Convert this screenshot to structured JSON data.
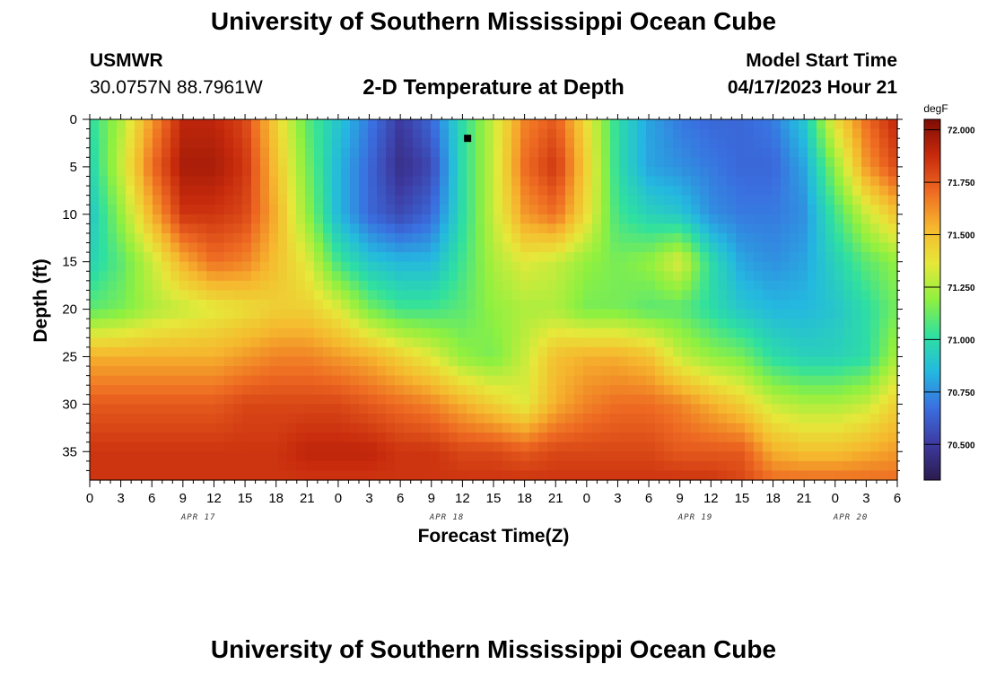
{
  "header": {
    "title": "University of Southern Mississippi Ocean Cube",
    "station_id": "USMWR",
    "coords": "30.0757N  88.7961W",
    "subtitle": "2-D Temperature at Depth",
    "model_start_label": "Model Start Time",
    "model_start_value": "04/17/2023 Hour 21"
  },
  "footer": {
    "title": "University of Southern Mississippi Ocean Cube"
  },
  "chart_data": {
    "type": "heatmap",
    "title": "2-D Temperature at Depth",
    "xlabel": "Forecast Time(Z)",
    "ylabel": "Depth (ft)",
    "x_tick_labels": [
      "0",
      "3",
      "6",
      "9",
      "12",
      "15",
      "18",
      "21",
      "0",
      "3",
      "6",
      "9",
      "12",
      "15",
      "18",
      "21",
      "0",
      "3",
      "6",
      "9",
      "12",
      "15",
      "18",
      "21",
      "0",
      "3",
      "6"
    ],
    "x_date_labels": [
      {
        "label": "APR 17",
        "hour_index": 3.5
      },
      {
        "label": "APR 18",
        "hour_index": 11.5
      },
      {
        "label": "APR 19",
        "hour_index": 19.5
      },
      {
        "label": "APR 20",
        "hour_index": 24.5
      }
    ],
    "xlim_hours_from_apr17_00z": [
      0,
      78
    ],
    "y_tick_labels": [
      "0",
      "5",
      "10",
      "15",
      "20",
      "25",
      "30",
      "35"
    ],
    "y_ticks": [
      0,
      5,
      10,
      15,
      20,
      25,
      30,
      35
    ],
    "ylim": [
      38,
      0
    ],
    "y_inverted": true,
    "colorbar": {
      "unit": "degF",
      "ticks": [
        72.0,
        71.75,
        71.5,
        71.25,
        71.0,
        70.75,
        70.5
      ],
      "tick_labels": [
        "72.000",
        "71.750",
        "71.500",
        "71.250",
        "71.000",
        "70.750",
        "70.500"
      ],
      "range": [
        70.33,
        72.05
      ],
      "colormap": [
        "#2b1b4d",
        "#3d3aa0",
        "#3a6fe0",
        "#24b8e0",
        "#2fe0a0",
        "#8ef040",
        "#e6e83a",
        "#f6b72e",
        "#ee6a22",
        "#c72a0c",
        "#7e0c04"
      ]
    },
    "grid": false,
    "series": [
      {
        "name": "degF",
        "depth_ft": [
          0,
          5,
          10,
          15,
          20,
          25,
          30,
          35,
          38
        ],
        "time_hours": [
          0,
          3,
          6,
          9,
          12,
          15,
          18,
          21,
          24,
          27,
          30,
          33,
          36,
          39,
          42,
          45,
          48,
          51,
          54,
          57,
          60,
          63,
          66,
          69,
          72,
          75,
          78
        ],
        "values": [
          [
            71.0,
            71.25,
            71.6,
            71.9,
            71.9,
            71.8,
            71.45,
            71.1,
            70.9,
            70.7,
            70.5,
            70.65,
            71.0,
            71.3,
            71.65,
            71.75,
            71.4,
            71.0,
            70.8,
            70.7,
            70.65,
            70.65,
            70.7,
            70.9,
            71.4,
            71.7,
            71.9
          ],
          [
            70.95,
            71.3,
            71.7,
            71.95,
            71.95,
            71.85,
            71.5,
            71.15,
            70.85,
            70.65,
            70.45,
            70.55,
            71.0,
            71.3,
            71.7,
            71.85,
            71.45,
            71.0,
            70.8,
            70.75,
            70.7,
            70.65,
            70.65,
            70.8,
            71.2,
            71.6,
            71.8
          ],
          [
            70.9,
            71.2,
            71.55,
            71.85,
            71.85,
            71.8,
            71.55,
            71.2,
            70.85,
            70.65,
            70.55,
            70.65,
            71.0,
            71.3,
            71.6,
            71.7,
            71.4,
            71.05,
            70.95,
            70.9,
            70.75,
            70.7,
            70.7,
            70.75,
            71.05,
            71.3,
            71.5
          ],
          [
            70.95,
            71.1,
            71.3,
            71.55,
            71.7,
            71.65,
            71.5,
            71.35,
            71.05,
            70.9,
            70.85,
            70.85,
            71.05,
            71.25,
            71.35,
            71.3,
            71.2,
            71.15,
            71.2,
            71.35,
            71.0,
            70.8,
            70.75,
            70.8,
            70.95,
            71.1,
            71.2
          ],
          [
            71.1,
            71.15,
            71.25,
            71.3,
            71.35,
            71.4,
            71.45,
            71.45,
            71.35,
            71.15,
            71.05,
            71.05,
            71.1,
            71.2,
            71.25,
            71.25,
            71.15,
            71.15,
            71.1,
            71.1,
            71.0,
            70.9,
            70.85,
            70.85,
            70.9,
            71.0,
            71.15
          ],
          [
            71.55,
            71.55,
            71.55,
            71.55,
            71.55,
            71.6,
            71.65,
            71.65,
            71.6,
            71.55,
            71.45,
            71.35,
            71.2,
            71.15,
            71.3,
            71.5,
            71.55,
            71.55,
            71.5,
            71.3,
            71.2,
            71.15,
            71.0,
            70.95,
            70.95,
            71.0,
            71.25
          ],
          [
            71.75,
            71.75,
            71.75,
            71.75,
            71.75,
            71.8,
            71.8,
            71.8,
            71.8,
            71.75,
            71.7,
            71.65,
            71.55,
            71.45,
            71.35,
            71.55,
            71.65,
            71.7,
            71.7,
            71.65,
            71.55,
            71.45,
            71.3,
            71.25,
            71.25,
            71.3,
            71.45
          ],
          [
            71.85,
            71.85,
            71.85,
            71.85,
            71.85,
            71.85,
            71.85,
            71.9,
            71.9,
            71.9,
            71.85,
            71.85,
            71.8,
            71.8,
            71.75,
            71.8,
            71.8,
            71.8,
            71.8,
            71.75,
            71.75,
            71.75,
            71.55,
            71.5,
            71.5,
            71.55,
            71.6
          ],
          [
            71.85,
            71.85,
            71.85,
            71.85,
            71.85,
            71.85,
            71.85,
            71.85,
            71.85,
            71.85,
            71.85,
            71.85,
            71.85,
            71.85,
            71.85,
            71.85,
            71.85,
            71.85,
            71.85,
            71.85,
            71.85,
            71.8,
            71.7,
            71.7,
            71.7,
            71.7,
            71.7
          ]
        ]
      }
    ],
    "annotations": [
      {
        "type": "marker",
        "shape": "square",
        "color": "#000000",
        "x_hours": 36.5,
        "depth_ft": 2
      }
    ]
  }
}
